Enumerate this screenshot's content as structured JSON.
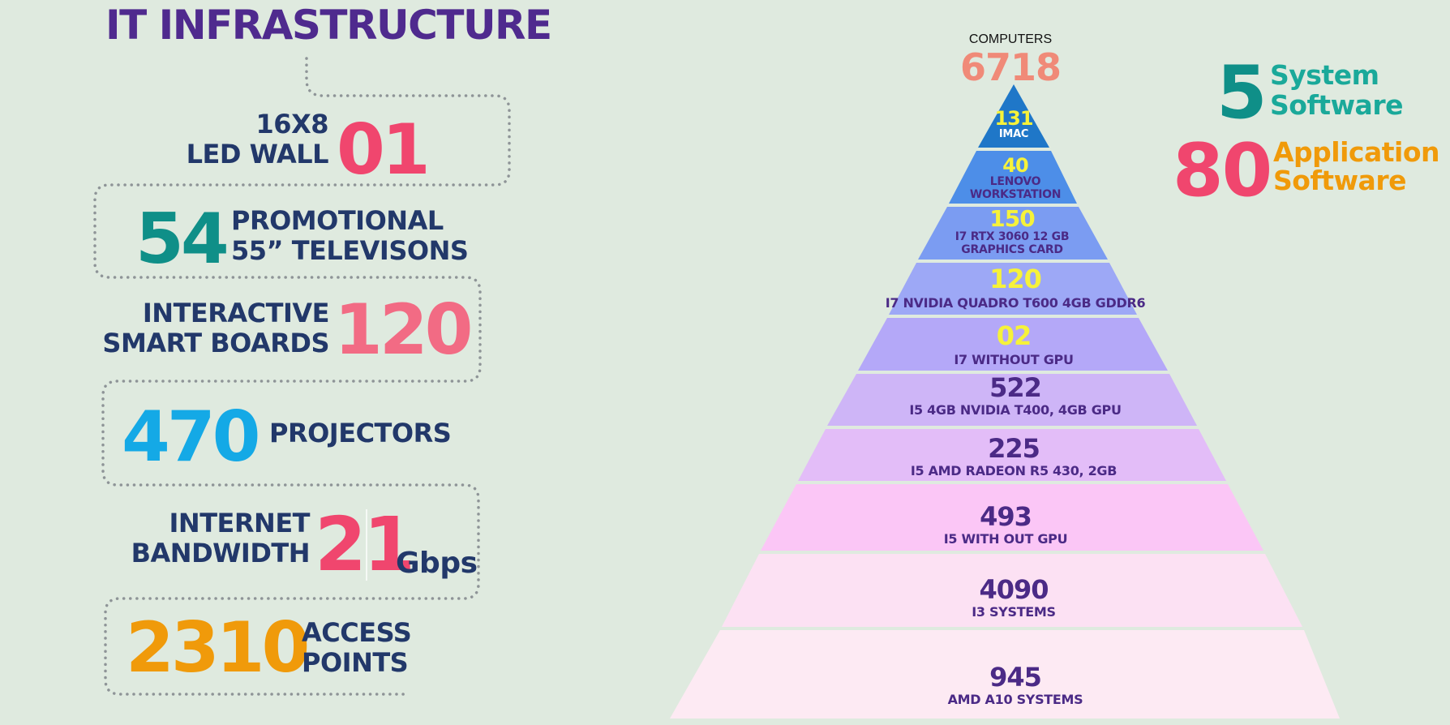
{
  "title": "IT INFRASTRUCTURE",
  "stats": {
    "led_wall": {
      "label_line1": "16X8",
      "label_line2": "LED WALL",
      "value": "01"
    },
    "televisions": {
      "value": "54",
      "label_line1": "PROMOTIONAL",
      "label_line2": "55” TELEVISONS"
    },
    "smart_boards": {
      "label_line1": "INTERACTIVE",
      "label_line2": "SMART BOARDS",
      "value": "120"
    },
    "projectors": {
      "value": "470",
      "label": "PROJECTORS"
    },
    "bandwidth": {
      "label_line1": "INTERNET",
      "label_line2": "BANDWIDTH",
      "value": "21",
      "unit": "Gbps"
    },
    "access_points": {
      "value": "2310",
      "label_line1": "ACCESS",
      "label_line2": "POINTS"
    }
  },
  "computers": {
    "label": "COMPUTERS",
    "total": "6718",
    "tiers": [
      {
        "value": "131",
        "desc1": "IMAC",
        "desc2": ""
      },
      {
        "value": "40",
        "desc1": "LENOVO",
        "desc2": "WORKSTATION"
      },
      {
        "value": "150",
        "desc1": "I7 RTX 3060 12 GB",
        "desc2": "GRAPHICS CARD"
      },
      {
        "value": "120",
        "desc1": "I7 NVIDIA QUADRO T600 4GB GDDR6",
        "desc2": ""
      },
      {
        "value": "02",
        "desc1": "I7 WITHOUT GPU",
        "desc2": ""
      },
      {
        "value": "522",
        "desc1": "I5 4GB NVIDIA T400, 4GB GPU",
        "desc2": ""
      },
      {
        "value": "225",
        "desc1": "I5 AMD RADEON R5 430, 2GB",
        "desc2": ""
      },
      {
        "value": "493",
        "desc1": "I5 WITH OUT GPU",
        "desc2": ""
      },
      {
        "value": "4090",
        "desc1": "I3 SYSTEMS",
        "desc2": ""
      },
      {
        "value": "945",
        "desc1": "AMD A10 SYSTEMS",
        "desc2": ""
      }
    ]
  },
  "software": {
    "system": {
      "value": "5",
      "label_line1": "System",
      "label_line2": "Software"
    },
    "application": {
      "value": "80",
      "label_line1": "Application",
      "label_line2": "Software"
    }
  },
  "colors": {
    "background": "#dfeadf",
    "title": "#4f2a8e",
    "pink": "#f0466e",
    "teal": "#0f8f88",
    "cyan": "#14a9e6",
    "orange": "#f09a0a",
    "salmon": "#f08a78",
    "navy": "#22386a"
  }
}
